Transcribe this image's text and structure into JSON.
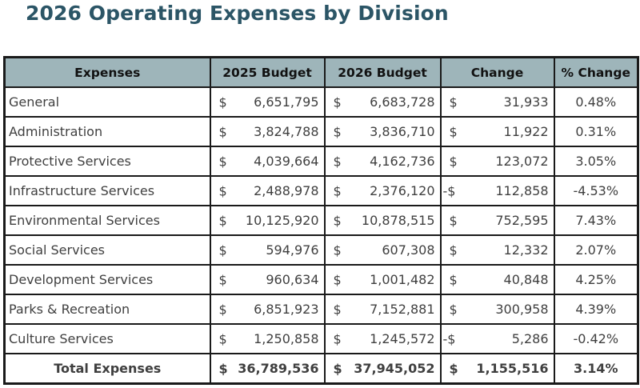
{
  "title": "2026 Operating Expenses by Division",
  "headers": [
    "Expenses",
    "2025 Budget",
    "2026 Budget",
    "Change",
    "% Change"
  ],
  "rows": [
    {
      "name": "General",
      "b2025_cur": "$",
      "b2025": "6,651,795",
      "b2026_cur": "$",
      "b2026": "6,683,728",
      "chg_cur": "$",
      "chg": "31,933",
      "pct": "0.48%"
    },
    {
      "name": "Administration",
      "b2025_cur": "$",
      "b2025": "3,824,788",
      "b2026_cur": "$",
      "b2026": "3,836,710",
      "chg_cur": "$",
      "chg": "11,922",
      "pct": "0.31%"
    },
    {
      "name": "Protective Services",
      "b2025_cur": "$",
      "b2025": "4,039,664",
      "b2026_cur": "$",
      "b2026": "4,162,736",
      "chg_cur": "$",
      "chg": "123,072",
      "pct": "3.05%"
    },
    {
      "name": "Infrastructure Services",
      "b2025_cur": "$",
      "b2025": "2,488,978",
      "b2026_cur": "$",
      "b2026": "2,376,120",
      "chg_cur": "-$",
      "chg": "112,858",
      "pct": "-4.53%"
    },
    {
      "name": "Environmental Services",
      "b2025_cur": "$",
      "b2025": "10,125,920",
      "b2026_cur": "$",
      "b2026": "10,878,515",
      "chg_cur": "$",
      "chg": "752,595",
      "pct": "7.43%"
    },
    {
      "name": "Social Services",
      "b2025_cur": "$",
      "b2025": "594,976",
      "b2026_cur": "$",
      "b2026": "607,308",
      "chg_cur": "$",
      "chg": "12,332",
      "pct": "2.07%"
    },
    {
      "name": "Development Services",
      "b2025_cur": "$",
      "b2025": "960,634",
      "b2026_cur": "$",
      "b2026": "1,001,482",
      "chg_cur": "$",
      "chg": "40,848",
      "pct": "4.25%"
    },
    {
      "name": "Parks & Recreation",
      "b2025_cur": "$",
      "b2025": "6,851,923",
      "b2026_cur": "$",
      "b2026": "7,152,881",
      "chg_cur": "$",
      "chg": "300,958",
      "pct": "4.39%"
    },
    {
      "name": "Culture Services",
      "b2025_cur": "$",
      "b2025": "1,250,858",
      "b2026_cur": "$",
      "b2026": "1,245,572",
      "chg_cur": "-$",
      "chg": "5,286",
      "pct": "-0.42%"
    }
  ],
  "total": {
    "name": "Total Expenses",
    "b2025_cur": "$",
    "b2025": "36,789,536",
    "b2026_cur": "$",
    "b2026": "37,945,052",
    "chg_cur": "$",
    "chg": "1,155,516",
    "pct": "3.14%"
  },
  "colors": {
    "title": "#2b5566",
    "header_bg": "#9eb5ba",
    "border": "#1a1a1a"
  }
}
